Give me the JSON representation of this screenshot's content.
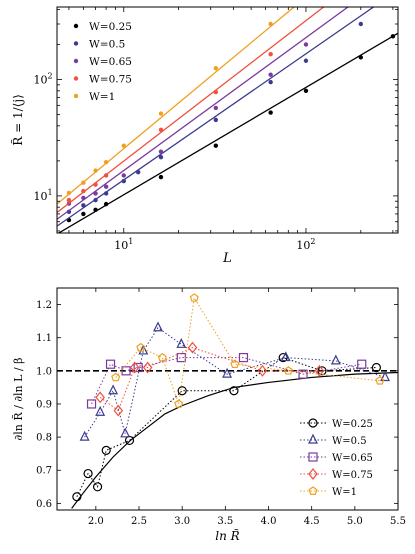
{
  "chart_data": [
    {
      "type": "scatter",
      "title": "",
      "xlabel": "L",
      "ylabel": "R̃ = 1/⟨j⟩",
      "xscale": "log",
      "yscale": "log",
      "xlim": [
        4.3,
        320
      ],
      "ylim": [
        4.8,
        420
      ],
      "x_tick_labels": [
        "10¹",
        "10²"
      ],
      "y_tick_labels": [
        "10¹",
        "10²"
      ],
      "legend_position": "top-left",
      "fit_lines": true,
      "series": [
        {
          "name": "W=0.25",
          "color": "#000000",
          "x": [
            5,
            6,
            7,
            8,
            16,
            32,
            64,
            100,
            200,
            300
          ],
          "y": [
            6.2,
            7.0,
            7.6,
            8.5,
            14.5,
            27,
            52,
            80,
            155,
            235
          ],
          "fit": {
            "x": [
              4.3,
              320
            ],
            "y": [
              4.7,
              250
            ]
          }
        },
        {
          "name": "W=0.5",
          "color": "#3b3b8f",
          "x": [
            5,
            6,
            7,
            8,
            10,
            12,
            16,
            32,
            64,
            100,
            200
          ],
          "y": [
            7.3,
            8.3,
            9.2,
            10.5,
            13.4,
            16.0,
            21.5,
            45,
            95,
            145,
            300
          ],
          "fit": {
            "x": [
              4.3,
              235
            ],
            "y": [
              5.5,
              420
            ]
          }
        },
        {
          "name": "W=0.65",
          "color": "#7a3aa0",
          "x": [
            5,
            6,
            7,
            8,
            10,
            16,
            32,
            64,
            100
          ],
          "y": [
            8.6,
            9.6,
            10.5,
            12.0,
            15.0,
            24,
            57,
            110,
            200
          ],
          "fit": {
            "x": [
              4.3,
              170
            ],
            "y": [
              6.3,
              420
            ]
          }
        },
        {
          "name": "W=0.75",
          "color": "#f0503c",
          "x": [
            5,
            6,
            7,
            8,
            16,
            32,
            64
          ],
          "y": [
            9.2,
            11.0,
            12.5,
            15.0,
            37,
            78,
            165
          ],
          "fit": {
            "x": [
              4.3,
              125
            ],
            "y": [
              7.2,
              420
            ]
          }
        },
        {
          "name": "W=1",
          "color": "#f0a020",
          "x": [
            5,
            6,
            7,
            8,
            10,
            16,
            32,
            64
          ],
          "y": [
            10.6,
            13.0,
            16.5,
            19.5,
            27,
            51,
            125,
            300
          ],
          "fit": {
            "x": [
              4.3,
              86
            ],
            "y": [
              8.5,
              420
            ]
          }
        }
      ]
    },
    {
      "type": "line",
      "title": "",
      "xlabel": "ln R̃",
      "ylabel": "∂ln R̃ / ∂ln L / β",
      "xlim": [
        1.55,
        5.5
      ],
      "ylim": [
        0.58,
        1.25
      ],
      "x_ticks": [
        2.0,
        2.5,
        3.0,
        3.5,
        4.0,
        4.5,
        5.0,
        5.5
      ],
      "x_tick_labels": [
        "2.0",
        "2.5",
        "3.0",
        "3.5",
        "4.0",
        "4.5",
        "5.0",
        "5.5"
      ],
      "y_ticks": [
        0.6,
        0.7,
        0.8,
        0.9,
        1.0,
        1.1,
        1.2
      ],
      "y_tick_labels": [
        "0.6",
        "0.7",
        "0.8",
        "0.9",
        "1.0",
        "1.1",
        "1.2"
      ],
      "reference_line": 1.0,
      "legend_position": "bottom-right",
      "series": [
        {
          "name": "W=0.25",
          "color": "#000000",
          "marker": "circle",
          "x": [
            1.78,
            1.91,
            2.02,
            2.12,
            2.39,
            3.0,
            3.6,
            4.17,
            4.62,
            5.25
          ],
          "y": [
            0.62,
            0.69,
            0.65,
            0.76,
            0.79,
            0.94,
            0.94,
            1.04,
            1.0,
            1.01
          ]
        },
        {
          "name": "W=0.5",
          "color": "#3b3b8f",
          "marker": "triangle",
          "x": [
            1.87,
            2.05,
            2.2,
            2.34,
            2.55,
            2.72,
            2.99,
            3.52,
            4.2,
            4.78,
            5.35
          ],
          "y": [
            0.8,
            0.875,
            0.94,
            0.81,
            1.06,
            1.13,
            1.08,
            0.99,
            1.04,
            1.03,
            0.98
          ]
        },
        {
          "name": "W=0.65",
          "color": "#7a3aa0",
          "marker": "square",
          "x": [
            1.95,
            2.17,
            2.35,
            2.49,
            2.99,
            3.71,
            4.4,
            5.08
          ],
          "y": [
            0.9,
            1.02,
            1.0,
            1.01,
            1.04,
            1.04,
            0.99,
            1.02
          ]
        },
        {
          "name": "W=0.75",
          "color": "#f0503c",
          "marker": "diamond",
          "x": [
            2.05,
            2.26,
            2.45,
            2.6,
            3.12,
            3.93,
            4.59
          ],
          "y": [
            0.92,
            0.88,
            1.01,
            1.01,
            1.07,
            1.0,
            1.0
          ]
        },
        {
          "name": "W=1",
          "color": "#f0a020",
          "marker": "pentagon",
          "x": [
            2.23,
            2.52,
            2.77,
            2.96,
            3.14,
            3.61,
            4.23,
            5.29
          ],
          "y": [
            0.98,
            1.07,
            1.04,
            0.9,
            1.22,
            1.02,
            1.0,
            0.97
          ]
        }
      ],
      "fit_curve": {
        "name": "",
        "color": "#000000",
        "x": [
          1.72,
          1.85,
          2.0,
          2.2,
          2.4,
          2.6,
          2.8,
          3.0,
          3.3,
          3.6,
          4.0,
          4.5,
          5.0,
          5.5
        ],
        "y": [
          0.585,
          0.63,
          0.68,
          0.74,
          0.79,
          0.83,
          0.87,
          0.895,
          0.925,
          0.95,
          0.965,
          0.98,
          0.99,
          0.995
        ]
      }
    }
  ]
}
